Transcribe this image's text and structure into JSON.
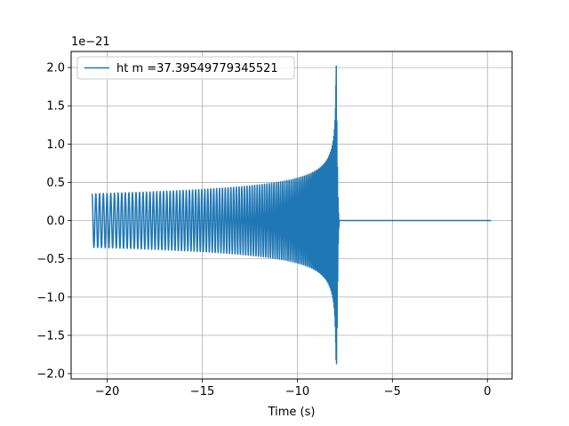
{
  "chart_data": {
    "type": "line",
    "title": "",
    "xlabel": "Time (s)",
    "ylabel": "",
    "offset_label": "1e−21",
    "xlim": [
      -21.9,
      1.3
    ],
    "ylim": [
      -2.07,
      2.21
    ],
    "grid": true,
    "legend_placement": "top-left",
    "x_ticks": [
      -20,
      -15,
      -10,
      -5,
      0
    ],
    "x_tick_labels": [
      "−20",
      "−15",
      "−10",
      "−5",
      "0"
    ],
    "y_ticks": [
      -2.0,
      -1.5,
      -1.0,
      -0.5,
      0.0,
      0.5,
      1.0,
      1.5,
      2.0
    ],
    "y_tick_labels": [
      "−2.0",
      "−1.5",
      "−1.0",
      "−0.5",
      "0.0",
      "0.5",
      "1.0",
      "1.5",
      "2.0"
    ],
    "series": [
      {
        "name": "ht m =37.39549779345521",
        "color": "#1f77b4",
        "chirp_start": -20.8,
        "merger_time": -7.95,
        "ringdown_end": -7.8,
        "x_end": 0.2,
        "initial_amplitude": 0.35,
        "peak_max": 2.02,
        "peak_min": -1.87
      }
    ]
  }
}
